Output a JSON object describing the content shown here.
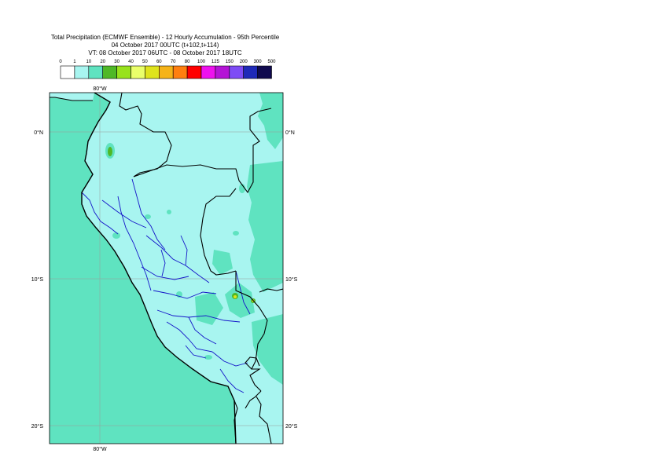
{
  "header": {
    "line1": "Total Precipitation (ECMWF Ensemble) - 12 Hourly Accumulation - 95th Percentile",
    "line2": "04 October 2017 00UTC (t+102,t+114)",
    "line3": "VT: 08 October 2017 06UTC - 08 October 2017 18UTC"
  },
  "legend": {
    "thresholds": [
      "0",
      "1",
      "10",
      "20",
      "30",
      "40",
      "50",
      "60",
      "70",
      "80",
      "100",
      "125",
      "150",
      "200",
      "300",
      "500"
    ],
    "colors": [
      "#ffffff",
      "#a8f5f0",
      "#5fe3c0",
      "#4fb827",
      "#98e21d",
      "#eaff6a",
      "#dfe31c",
      "#f5b318",
      "#ff7f0f",
      "#ff0000",
      "#ee11ee",
      "#b414d6",
      "#7e4cf5",
      "#1f2ab8",
      "#100a4e"
    ]
  },
  "map": {
    "lat_labels": [
      "0°N",
      "10°S",
      "20°S"
    ],
    "lon_label_top": "80°W",
    "lon_label_bottom": "80°W",
    "colors": {
      "sea": "#5fe3c0",
      "land": "#a8f5f0",
      "heavy": "#4fb827",
      "peak": "#dfe31c",
      "coast": "#000000",
      "rivers": "#1414c8",
      "grid": "#9a9a9a"
    }
  }
}
